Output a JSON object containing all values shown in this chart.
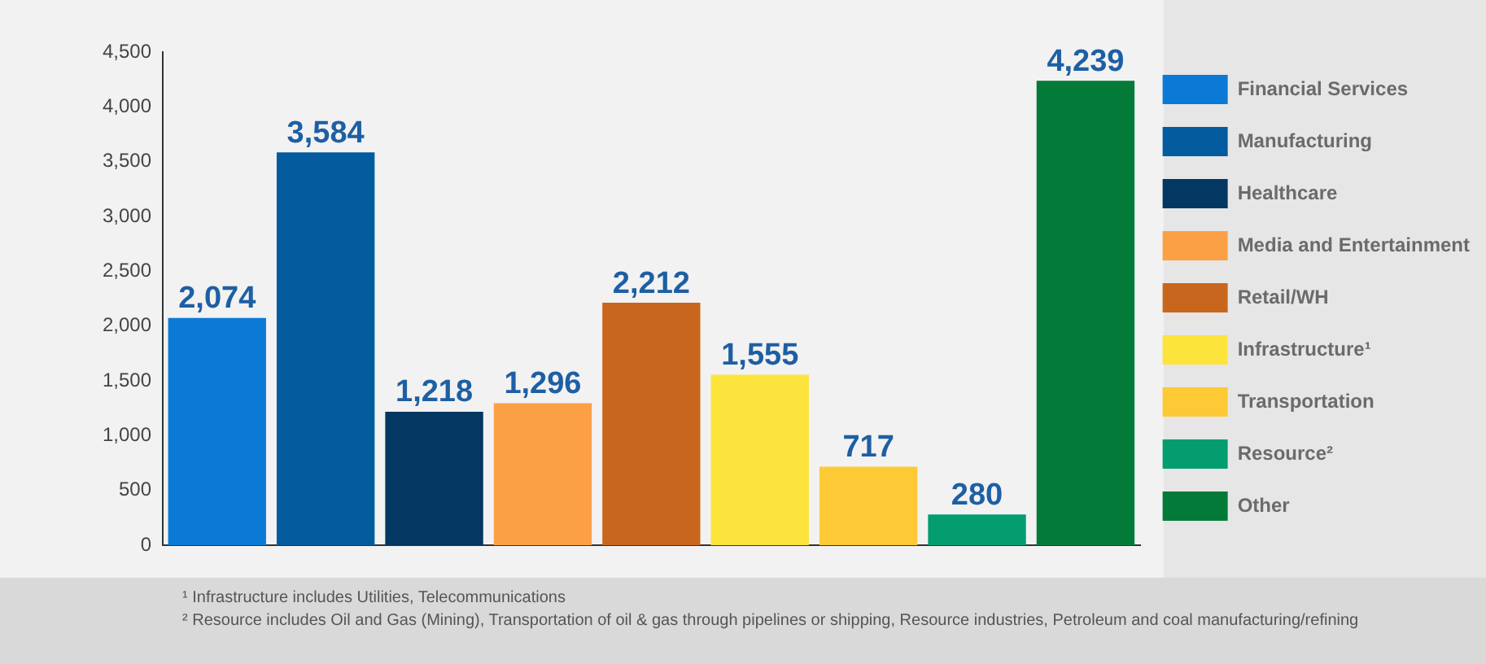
{
  "chart_data": {
    "type": "bar",
    "categories": [
      null,
      null,
      null,
      null,
      null,
      null,
      null,
      null,
      null
    ],
    "series": [
      {
        "name": "Financial Services",
        "color": "#0a7ad6",
        "values": [
          2074,
          null,
          null,
          null,
          null,
          null,
          null,
          null,
          null
        ],
        "value_labels": [
          "2,074",
          null,
          null,
          null,
          null,
          null,
          null,
          null,
          null
        ]
      },
      {
        "name": "Manufacturing",
        "color": "#045b9e",
        "values": [
          null,
          3584,
          null,
          null,
          null,
          null,
          null,
          null,
          null
        ],
        "value_labels": [
          null,
          "3,584",
          null,
          null,
          null,
          null,
          null,
          null,
          null
        ]
      },
      {
        "name": "Healthcare",
        "color": "#043762",
        "values": [
          null,
          null,
          1218,
          null,
          null,
          null,
          null,
          null,
          null
        ],
        "value_labels": [
          null,
          null,
          "1,218",
          null,
          null,
          null,
          null,
          null,
          null
        ]
      },
      {
        "name": "Media and Entertainment",
        "color": "#fca045",
        "values": [
          null,
          null,
          null,
          1296,
          null,
          null,
          null,
          null,
          null
        ],
        "value_labels": [
          null,
          null,
          null,
          "1,296",
          null,
          null,
          null,
          null,
          null
        ]
      },
      {
        "name": "Retail/WH",
        "color": "#c9661e",
        "values": [
          null,
          null,
          null,
          null,
          2212,
          null,
          null,
          null,
          null
        ],
        "value_labels": [
          null,
          null,
          null,
          null,
          "2,212",
          null,
          null,
          null,
          null
        ]
      },
      {
        "name": "Infrastructure¹",
        "color": "#fde43c",
        "values": [
          null,
          null,
          null,
          null,
          null,
          1555,
          null,
          null,
          null
        ],
        "value_labels": [
          null,
          null,
          null,
          null,
          null,
          "1,555",
          null,
          null,
          null
        ]
      },
      {
        "name": "Transportation",
        "color": "#fdc935",
        "values": [
          null,
          null,
          null,
          null,
          null,
          null,
          717,
          null,
          null
        ],
        "value_labels": [
          null,
          null,
          null,
          null,
          null,
          null,
          "717",
          null,
          null
        ]
      },
      {
        "name": "Resource²",
        "color": "#049d70",
        "values": [
          null,
          null,
          null,
          null,
          null,
          null,
          null,
          280,
          null
        ],
        "value_labels": [
          null,
          null,
          null,
          null,
          null,
          null,
          null,
          "280",
          null
        ]
      },
      {
        "name": "Other",
        "color": "#047a38",
        "values": [
          null,
          null,
          null,
          null,
          null,
          null,
          null,
          null,
          4239
        ],
        "value_labels": [
          null,
          null,
          null,
          null,
          null,
          null,
          null,
          null,
          "4,239"
        ]
      }
    ],
    "ylim": [
      0,
      4500
    ],
    "yticks": [
      0,
      500,
      {
        "value": 1000,
        "label": "1,000"
      },
      {
        "value": 1500,
        "label": "1,500"
      },
      {
        "value": 2000,
        "label": "2,000"
      },
      {
        "value": 2500,
        "label": "2,500"
      },
      {
        "value": 3000,
        "label": "3,000"
      },
      {
        "value": 3500,
        "label": "3,500"
      },
      {
        "value": 4000,
        "label": "4,000"
      },
      {
        "value": 4500,
        "label": "4,500"
      }
    ],
    "grid": false,
    "legend": "right",
    "tick_labels": "y",
    "annotations": [
      "¹ Infrastructure includes Utilities, Telecommunications",
      "² Resource includes Oil and Gas (Mining), Transportation of oil & gas through pipelines or shipping, Resource industries, Petroleum and coal manufacturing/refining"
    ]
  }
}
